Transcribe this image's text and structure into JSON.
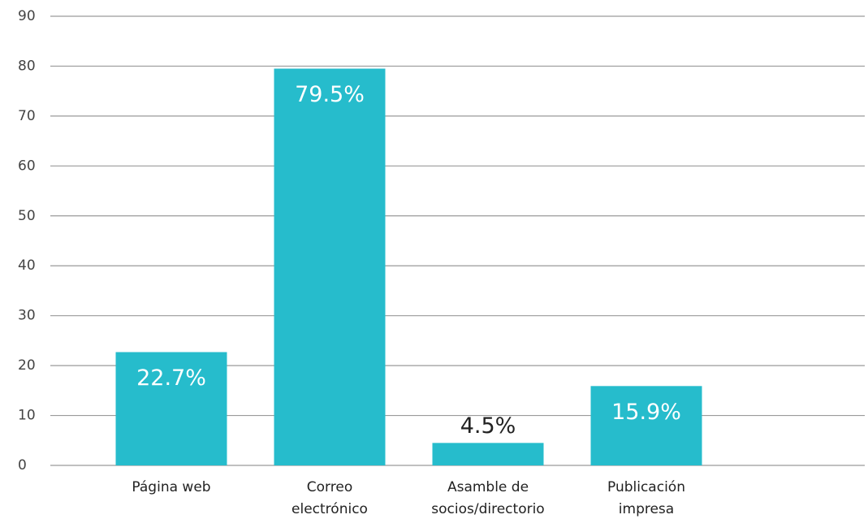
{
  "chart_data": {
    "type": "bar",
    "categories": [
      "Página web",
      "Correo\nelectrónico",
      "Asamble de\nsocios/directorio",
      "Publicación\nimpresa"
    ],
    "values": [
      22.7,
      79.5,
      4.5,
      15.9
    ],
    "value_labels": [
      "22.7%",
      "79.5%",
      "4.5%",
      "15.9%"
    ],
    "color": "#26bccc",
    "ylim": [
      0,
      90
    ],
    "yticks": [
      0,
      10,
      20,
      30,
      40,
      50,
      60,
      70,
      80,
      90
    ],
    "grid": true
  }
}
